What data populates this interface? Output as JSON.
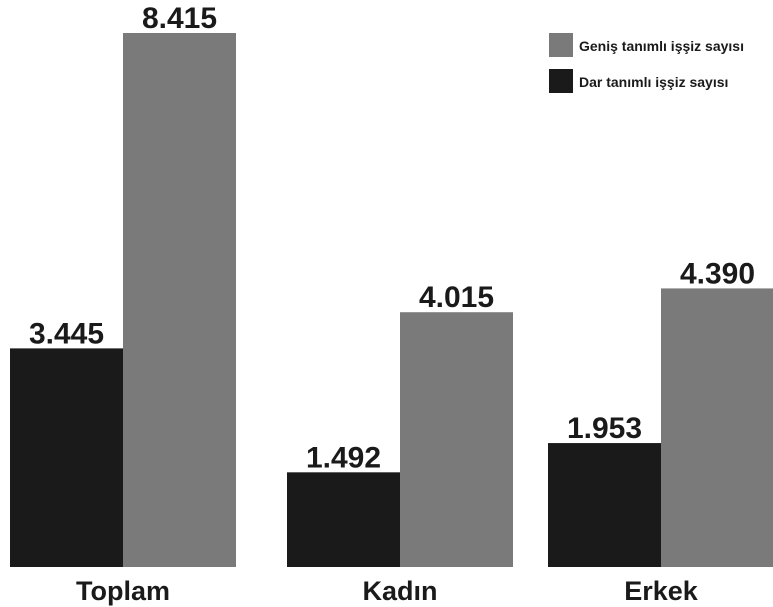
{
  "chart_data": {
    "type": "bar",
    "categories": [
      "Toplam",
      "Kadın",
      "Erkek"
    ],
    "series": [
      {
        "name": "Dar tanımlı işşiz sayısı",
        "color": "#1a1a1a",
        "values": [
          3.445,
          1.492,
          1.953
        ],
        "value_labels": [
          "3.445",
          "1.492",
          "1.953"
        ]
      },
      {
        "name": "Geniş tanımlı işşiz sayısı",
        "color": "#7a7a7a",
        "values": [
          8.415,
          4.015,
          4.39
        ],
        "value_labels": [
          "8.415",
          "4.015",
          "4.390"
        ]
      }
    ],
    "legend_order": [
      1,
      0
    ],
    "legend_position": "top-right",
    "grid": false,
    "ylim": [
      0,
      8.5
    ],
    "title": "",
    "xlabel": "",
    "ylabel": ""
  }
}
